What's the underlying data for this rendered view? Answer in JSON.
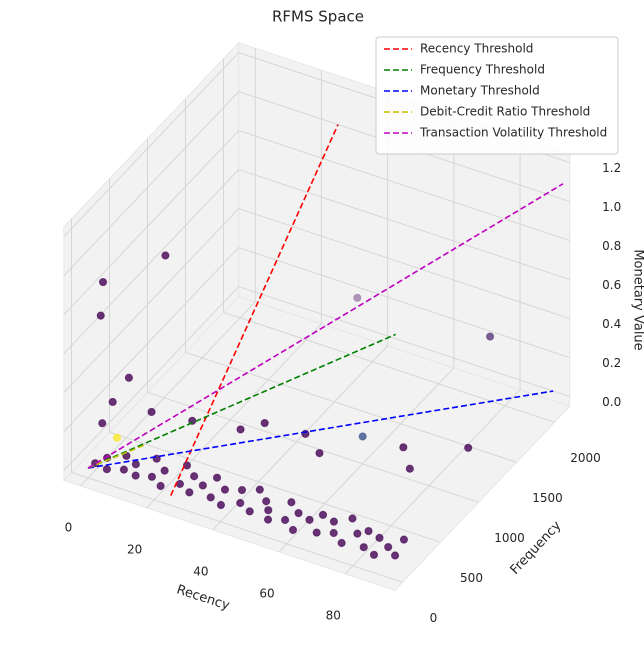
{
  "chart_data": {
    "type": "scatter3d",
    "title": "RFMS Space",
    "xlabel": "Recency",
    "ylabel": "Frequency",
    "zlabel": "Monetary Value",
    "xlim": [
      -5,
      95
    ],
    "ylim": [
      -100,
      2200
    ],
    "zlim": [
      -0.05,
      1.25
    ],
    "xticks": [
      0,
      20,
      40,
      60,
      80
    ],
    "yticks": [
      0,
      500,
      1000,
      1500,
      2000
    ],
    "zticks": [
      {
        "value": 0,
        "label": "0.0"
      },
      0.2,
      0.4,
      0.6,
      0.8,
      {
        "value": 1,
        "label": "1.0"
      },
      1.2
    ],
    "grid": true,
    "legend": "upper right",
    "points": {
      "x": [
        1,
        3,
        5,
        7,
        9,
        11,
        13,
        15,
        17,
        19,
        21,
        23,
        25,
        27,
        29,
        31,
        33,
        35,
        37,
        39,
        41,
        43,
        45,
        47,
        49,
        51,
        53,
        55,
        57,
        59,
        61,
        63,
        65,
        67,
        69,
        71,
        73,
        75,
        77,
        79,
        81,
        83,
        85,
        87,
        89,
        90,
        30,
        45,
        55,
        70,
        80,
        85,
        60,
        20,
        10,
        35,
        4,
        2,
        5,
        2,
        2,
        60,
        90,
        5,
        3
      ],
      "y": [
        50,
        120,
        30,
        200,
        80,
        150,
        60,
        250,
        100,
        180,
        40,
        300,
        120,
        220,
        70,
        160,
        260,
        90,
        190,
        50,
        240,
        130,
        300,
        80,
        210,
        150,
        60,
        280,
        110,
        200,
        40,
        170,
        260,
        90,
        230,
        140,
        300,
        70,
        190,
        250,
        100,
        220,
        60,
        160,
        280,
        120,
        700,
        900,
        650,
        1100,
        750,
        1300,
        1000,
        500,
        400,
        800,
        150,
        100,
        800,
        110,
        80,
        930,
        1370,
        320,
        250
      ],
      "z": [
        0.01,
        0.02,
        0.01,
        0.02,
        0.01,
        0.02,
        0.01,
        0.03,
        0.01,
        0.02,
        0.01,
        0.02,
        0.01,
        0.02,
        0.01,
        0.02,
        0.03,
        0.01,
        0.02,
        0.01,
        0.02,
        0.01,
        0.02,
        0.01,
        0.02,
        0.01,
        0.01,
        0.02,
        0.01,
        0.02,
        0.01,
        0.02,
        0.02,
        0.01,
        0.02,
        0.01,
        0.03,
        0.01,
        0.02,
        0.02,
        0.01,
        0.02,
        0.01,
        0.02,
        0.02,
        0.01,
        0.08,
        0.06,
        0.12,
        0.05,
        0.14,
        0.05,
        0.09,
        0.15,
        0.18,
        0.1,
        0.3,
        0.2,
        0.79,
        0.92,
        0.76,
        0.83,
        0.62,
        0.36,
        0.07
      ],
      "colors": [
        "#440154",
        "#440154",
        "#440154",
        "#440154",
        "#440154",
        "#440154",
        "#440154",
        "#440154",
        "#440154",
        "#440154",
        "#440154",
        "#440154",
        "#440154",
        "#440154",
        "#440154",
        "#440154",
        "#440154",
        "#440154",
        "#440154",
        "#440154",
        "#440154",
        "#440154",
        "#440154",
        "#440154",
        "#440154",
        "#440154",
        "#440154",
        "#440154",
        "#440154",
        "#440154",
        "#440154",
        "#440154",
        "#440154",
        "#440154",
        "#440154",
        "#440154",
        "#440154",
        "#440154",
        "#440154",
        "#440154",
        "#440154",
        "#440154",
        "#440154",
        "#440154",
        "#440154",
        "#440154",
        "#440154",
        "#440154",
        "#440154",
        "#440154",
        "#440154",
        "#440154",
        "#3b528b",
        "#440154",
        "#440154",
        "#440154",
        "#440154",
        "#440154",
        "#440154",
        "#440154",
        "#440154",
        "#9a7aa8",
        "#5a3a7a",
        "#440154",
        "#fde725"
      ]
    },
    "series": [
      {
        "name": "Recency Threshold",
        "color": "#ff0000",
        "x": [
          25,
          25
        ],
        "y": [
          0,
          2200
        ],
        "z": [
          0,
          1.0
        ]
      },
      {
        "name": "Frequency Threshold",
        "color": "#008000",
        "x": [
          0,
          47
        ],
        "y": [
          0,
          2000
        ],
        "z": [
          0,
          0.13
        ]
      },
      {
        "name": "Monetary Threshold",
        "color": "#0000ff",
        "x": [
          0,
          90
        ],
        "y": [
          0,
          2200
        ],
        "z": [
          0,
          0
        ]
      },
      {
        "name": "Debit-Credit Ratio Threshold",
        "color": "#bfbf00",
        "x": [
          0,
          10
        ],
        "y": [
          0,
          300
        ],
        "z": [
          0,
          0.05
        ]
      },
      {
        "name": "Transaction Volatility Threshold",
        "color": "#bf00bf",
        "x": [
          0,
          93
        ],
        "y": [
          0,
          2200
        ],
        "z": [
          0,
          1.08
        ]
      }
    ]
  }
}
